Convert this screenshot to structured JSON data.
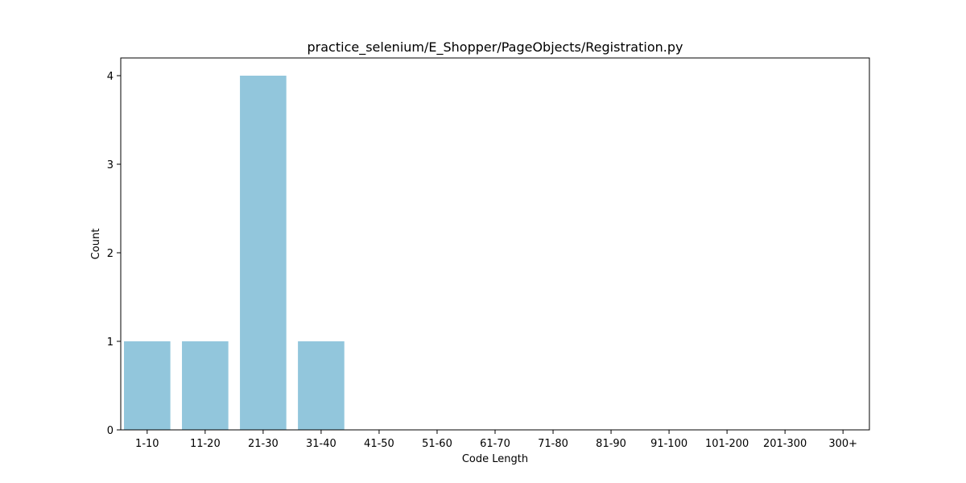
{
  "chart_data": {
    "type": "bar",
    "title": "practice_selenium/E_Shopper/PageObjects/Registration.py",
    "xlabel": "Code Length",
    "ylabel": "Count",
    "categories": [
      "1-10",
      "11-20",
      "21-30",
      "31-40",
      "41-50",
      "51-60",
      "61-70",
      "71-80",
      "81-90",
      "91-100",
      "101-200",
      "201-300",
      "300+"
    ],
    "values": [
      1,
      1,
      4,
      1,
      0,
      0,
      0,
      0,
      0,
      0,
      0,
      0,
      0
    ],
    "ylim": [
      0,
      4.2
    ],
    "yticks": [
      0,
      1,
      2,
      3,
      4
    ],
    "grid": false,
    "bar_color": "#92C6DC"
  }
}
